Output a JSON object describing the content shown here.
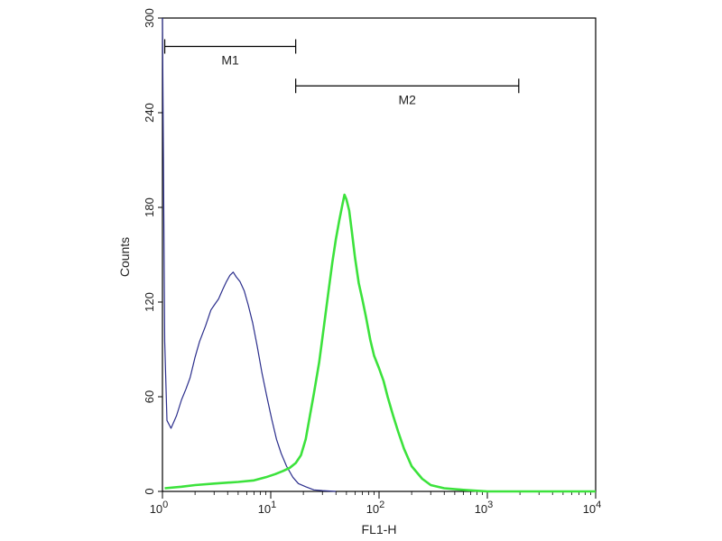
{
  "chart_data": {
    "type": "line",
    "title": "",
    "xlabel": "FL1-H",
    "ylabel": "Counts",
    "xscale": "log",
    "xlim": [
      1,
      10000
    ],
    "ylim": [
      0,
      300
    ],
    "x_ticks": [
      {
        "value": 1,
        "base": "10",
        "exp": "0"
      },
      {
        "value": 10,
        "base": "10",
        "exp": "1"
      },
      {
        "value": 100,
        "base": "10",
        "exp": "2"
      },
      {
        "value": 1000,
        "base": "10",
        "exp": "3"
      },
      {
        "value": 10000,
        "base": "10",
        "exp": "4"
      }
    ],
    "y_ticks": [
      {
        "value": 0,
        "label": "0"
      },
      {
        "value": 60,
        "label": "60"
      },
      {
        "value": 120,
        "label": "120"
      },
      {
        "value": 180,
        "label": "180"
      },
      {
        "value": 240,
        "label": "240"
      },
      {
        "value": 300,
        "label": "300"
      }
    ],
    "markers": [
      {
        "label": "M1",
        "x_start": 1.05,
        "x_end": 17,
        "y": 282
      },
      {
        "label": "M2",
        "x_start": 17,
        "x_end": 1950,
        "y": 257
      }
    ],
    "series": [
      {
        "color": "#2b2e8c",
        "x": [
          1.0,
          1.05,
          1.1,
          1.2,
          1.35,
          1.5,
          1.65,
          1.8,
          2.0,
          2.2,
          2.5,
          2.8,
          3.0,
          3.3,
          3.6,
          3.9,
          4.2,
          4.5,
          4.8,
          5.2,
          5.7,
          6.2,
          6.8,
          7.5,
          8.3,
          9.2,
          10.2,
          11.3,
          12.5,
          14,
          16,
          18,
          21,
          25,
          30,
          40
        ],
        "values": [
          300,
          95,
          45,
          40,
          48,
          58,
          65,
          72,
          85,
          95,
          105,
          115,
          118,
          122,
          128,
          133,
          137,
          139,
          136,
          133,
          127,
          118,
          107,
          92,
          75,
          60,
          46,
          33,
          24,
          16,
          9,
          5,
          3,
          1,
          0.5,
          0
        ]
      },
      {
        "color": "#3ce23c",
        "x": [
          1.05,
          1.5,
          2,
          3,
          5,
          7,
          9,
          11,
          13,
          15,
          17,
          19,
          21,
          23,
          25,
          28,
          31,
          34,
          37,
          40,
          43,
          46,
          48,
          50,
          53,
          56,
          60,
          65,
          70,
          76,
          83,
          90,
          100,
          110,
          120,
          135,
          150,
          170,
          200,
          250,
          300,
          400,
          600,
          1000,
          10000
        ],
        "values": [
          2,
          3,
          4,
          5,
          6,
          7,
          9,
          11,
          13,
          15,
          18,
          23,
          33,
          48,
          62,
          82,
          105,
          126,
          145,
          160,
          172,
          182,
          188,
          185,
          178,
          165,
          148,
          132,
          122,
          110,
          96,
          86,
          78,
          70,
          60,
          48,
          38,
          27,
          16,
          8,
          4,
          2,
          1,
          0,
          0
        ]
      }
    ]
  }
}
